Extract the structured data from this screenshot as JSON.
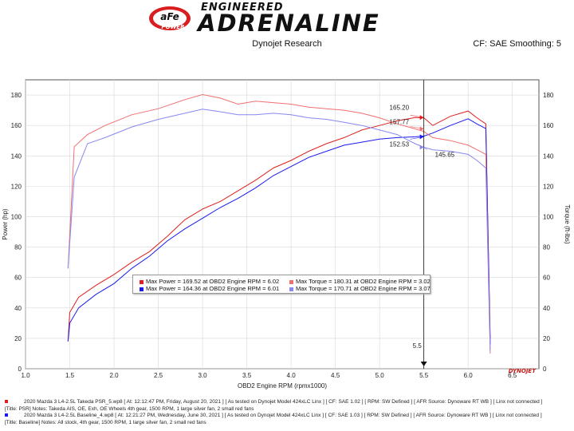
{
  "header": {
    "brand_top": "ENGINEERED",
    "brand_main": "ADRENALINE",
    "logo_text": "aFe",
    "logo_sub": "POWER",
    "subtitle": "Dynojet Research",
    "settings": "CF: SAE Smoothing: 5",
    "watermark": "DYNOJET"
  },
  "chart_data": {
    "type": "line",
    "xlabel": "OBD2 Engine RPM (rpmx1000)",
    "ylabel_left": "Power (hp)",
    "ylabel_right": "Torque (ft-lbs)",
    "xlim": [
      1.0,
      6.8
    ],
    "ylim": [
      0,
      190
    ],
    "x_ticks": [
      "1.0",
      "1.5",
      "2.0",
      "2.5",
      "3.0",
      "3.5",
      "4.0",
      "4.5",
      "5.0",
      "5.5",
      "6.0",
      "6.5"
    ],
    "y_ticks": [
      "0",
      "20",
      "40",
      "60",
      "80",
      "100",
      "120",
      "140",
      "160",
      "180"
    ],
    "grid": true,
    "cursor": {
      "x": 5.5,
      "label": "5.5"
    },
    "series": [
      {
        "name": "Power (Takeda PSR)",
        "color": "#e02020",
        "x": [
          1.48,
          1.5,
          1.6,
          1.8,
          2.0,
          2.2,
          2.4,
          2.6,
          2.8,
          3.0,
          3.2,
          3.4,
          3.6,
          3.8,
          4.0,
          4.2,
          4.4,
          4.6,
          4.8,
          5.0,
          5.2,
          5.4,
          5.5,
          5.6,
          5.8,
          6.0,
          6.1,
          6.2,
          6.25
        ],
        "y": [
          18,
          37,
          47,
          55,
          62,
          70,
          77,
          87,
          98,
          105,
          110,
          117,
          124,
          132,
          137,
          143,
          148,
          152,
          157,
          160,
          163,
          165.2,
          165,
          160,
          166,
          169.5,
          165,
          161,
          20
        ]
      },
      {
        "name": "Power (Baseline)",
        "color": "#1a1aee",
        "x": [
          1.48,
          1.5,
          1.6,
          1.8,
          2.0,
          2.2,
          2.4,
          2.6,
          2.8,
          3.0,
          3.2,
          3.4,
          3.6,
          3.8,
          4.0,
          4.2,
          4.4,
          4.6,
          4.8,
          5.0,
          5.2,
          5.4,
          5.5,
          5.6,
          5.8,
          6.0,
          6.1,
          6.2,
          6.25
        ],
        "y": [
          18,
          30,
          40,
          49,
          56,
          66,
          74,
          84,
          92,
          99,
          106,
          112,
          119,
          127,
          133,
          139,
          143,
          147,
          149,
          151,
          152,
          152.53,
          153,
          155,
          160,
          164.4,
          161,
          158,
          16
        ]
      },
      {
        "name": "Torque (Takeda PSR)",
        "color": "#f07070",
        "x": [
          1.48,
          1.55,
          1.7,
          1.9,
          2.2,
          2.5,
          2.8,
          3.0,
          3.2,
          3.4,
          3.6,
          3.8,
          4.0,
          4.2,
          4.4,
          4.6,
          4.8,
          5.0,
          5.2,
          5.4,
          5.5,
          5.6,
          5.8,
          6.0,
          6.1,
          6.2,
          6.25
        ],
        "y": [
          66,
          146,
          154,
          160,
          167,
          171,
          177,
          180.3,
          178,
          174,
          176,
          175,
          174,
          172,
          171,
          170,
          168,
          165,
          161,
          157.77,
          156,
          152,
          150,
          147,
          144,
          141,
          10
        ]
      },
      {
        "name": "Torque (Baseline)",
        "color": "#8888f0",
        "x": [
          1.48,
          1.55,
          1.7,
          1.9,
          2.2,
          2.5,
          2.8,
          3.0,
          3.2,
          3.4,
          3.6,
          3.8,
          4.0,
          4.2,
          4.4,
          4.6,
          4.8,
          5.0,
          5.2,
          5.4,
          5.5,
          5.6,
          5.8,
          6.0,
          6.1,
          6.2,
          6.25
        ],
        "y": [
          66,
          126,
          148,
          152,
          159,
          164,
          168,
          170.7,
          169,
          167,
          167,
          168,
          167,
          165,
          164,
          162,
          160,
          157,
          154,
          148,
          145.65,
          144,
          143,
          141,
          137,
          132,
          12
        ]
      }
    ],
    "annotations": [
      {
        "text": "165.20",
        "x": 5.4,
        "y": 165.2,
        "color": "#e02020"
      },
      {
        "text": "157.77",
        "x": 5.4,
        "y": 157.77,
        "color": "#f07070"
      },
      {
        "text": "152.53",
        "x": 5.4,
        "y": 152.53,
        "color": "#1a1aee"
      },
      {
        "text": "145.65",
        "x": 5.5,
        "y": 145.65,
        "color": "#8888f0"
      }
    ]
  },
  "legend": {
    "rows": [
      {
        "color": "#e02020",
        "text": "Max Power = 169.52 at OBD2 Engine RPM = 6.02"
      },
      {
        "color": "#f07070",
        "text": "Max Torque = 180.31 at OBD2 Engine RPM = 3.02"
      },
      {
        "color": "#1a1aee",
        "text": "Max Power = 164.36 at OBD2 Engine RPM = 6.01"
      },
      {
        "color": "#8888f0",
        "text": "Max Torque = 170.71 at OBD2 Engine RPM = 3.07"
      }
    ]
  },
  "footer": {
    "line1": "2020 Mazda 3 L4-2.5L Takeda PSR_5.wp8  [ At: 12:12:47 PM, Friday, August 20, 2021 ]  [ As tested on Dynojet Model 424xLC Linx ]  [ CF: SAE 1.02 ]  [ RPM: SW Defined ]  [ AFR Source: Dynoware RT WB ]  [ Linx not connected ]",
    "line2": "[Title: PSR]  Notes: Takeda AIS, OE, Exh, OE Wheels 4th gear, 1500 RPM, 1 large silver fan, 2 small red fans",
    "line3": "2020 Mazda 3 L4-2.5L Baseline_4.wp8  [ At: 12:21:27 PM, Wednesday, June 30, 2021 ]  [ As tested on Dynojet Model 424xLC Linx ]  [ CF: SAE 1.03 ]  [ RPM: SW Defined ]  [ AFR Source: Dynoware RT WB ]  [ Linx not connected ]",
    "line4": "[Title: Baseline]  Notes: All stock, 4th gear, 1500 RPM, 1 large silver fan, 2 small red fans"
  }
}
